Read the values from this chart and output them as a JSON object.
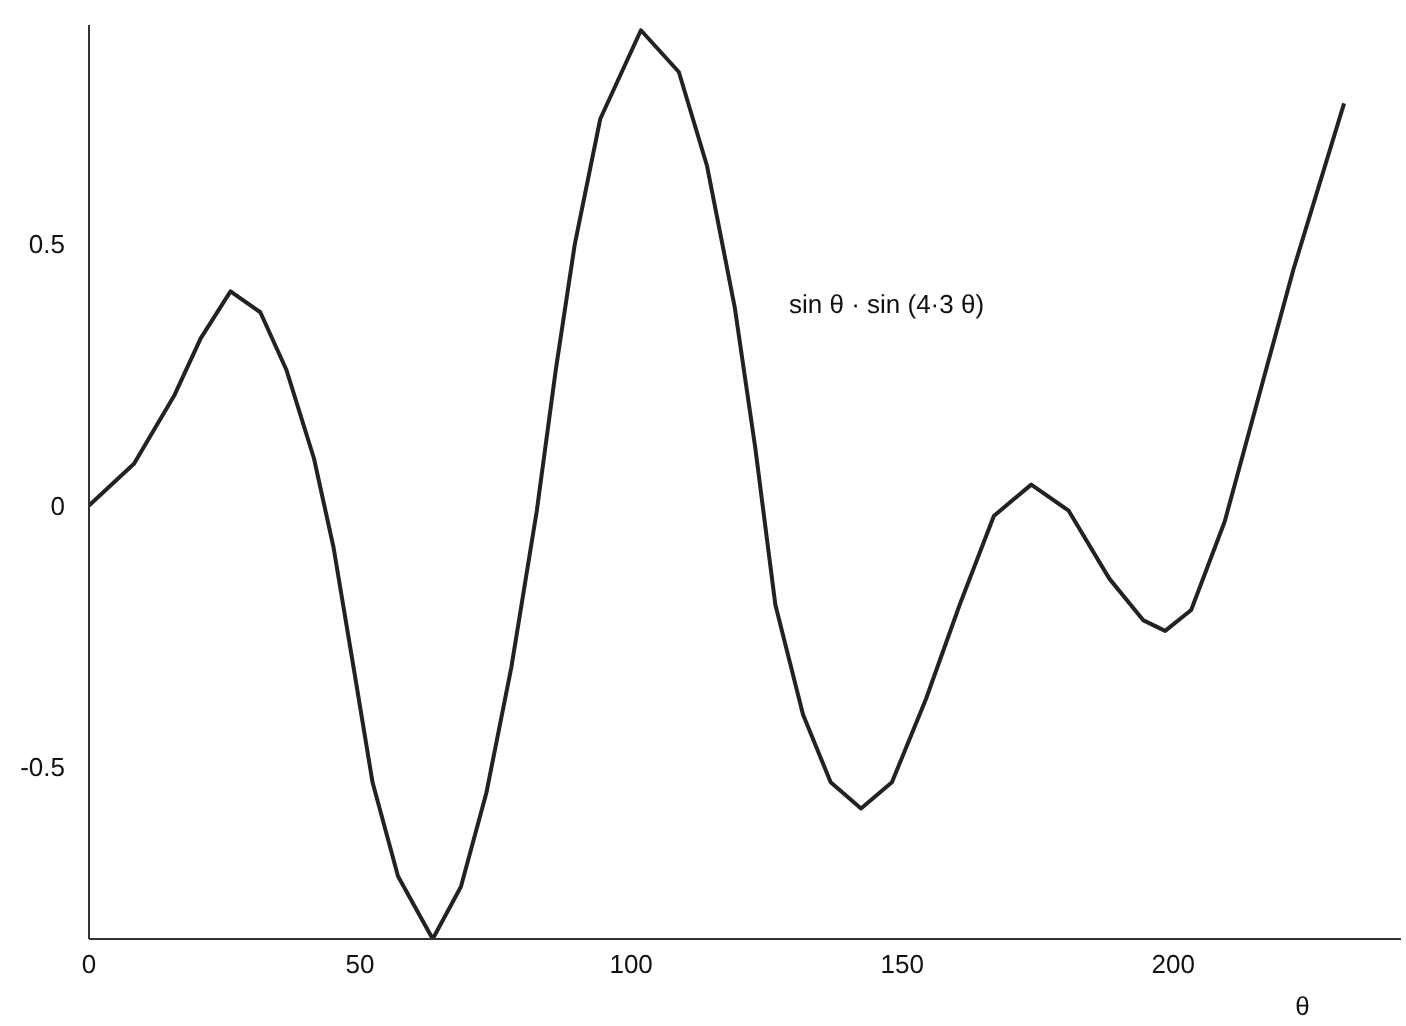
{
  "chart_data": {
    "type": "line",
    "xlabel": "θ",
    "x": [
      0,
      8.3,
      15.7,
      20.6,
      26.1,
      31.6,
      36.4,
      41.5,
      45.1,
      48.8,
      52.3,
      57,
      63.4,
      68.6,
      73.3,
      77.9,
      82.6,
      86.1,
      89.6,
      94.3,
      101.8,
      108.8,
      114.0,
      119.1,
      122.9,
      126.6,
      131.7,
      136.8,
      142.4,
      148.1,
      154.4,
      160.6,
      166.9,
      173.8,
      180.7,
      188.2,
      194.5,
      198.5,
      203.3,
      209.5,
      215.8,
      222.1,
      227.1,
      231.5
    ],
    "series": [
      {
        "color": "#222222",
        "values": [
          0,
          0.08,
          0.21,
          0.32,
          0.41,
          0.37,
          0.26,
          0.09,
          -0.08,
          -0.31,
          -0.53,
          -0.71,
          -0.83,
          -0.73,
          -0.55,
          -0.31,
          -0.01,
          0.26,
          0.5,
          0.74,
          0.91,
          0.83,
          0.65,
          0.38,
          0.11,
          -0.19,
          -0.4,
          -0.53,
          -0.58,
          -0.53,
          -0.37,
          -0.19,
          -0.02,
          0.04,
          -0.01,
          -0.14,
          -0.22,
          -0.24,
          -0.2,
          -0.03,
          0.21,
          0.45,
          0.62,
          0.77
        ]
      }
    ],
    "annotations": [
      "sin θ · sin (4·3 θ)"
    ],
    "xlim": [
      0,
      242
    ],
    "ylim": [
      -0.83,
      0.92
    ],
    "xticks": [
      0,
      50,
      100,
      150,
      200
    ],
    "yticks": [
      -0.5,
      0,
      0.5
    ],
    "grid": false,
    "marker": "none",
    "line_style": "solid"
  }
}
